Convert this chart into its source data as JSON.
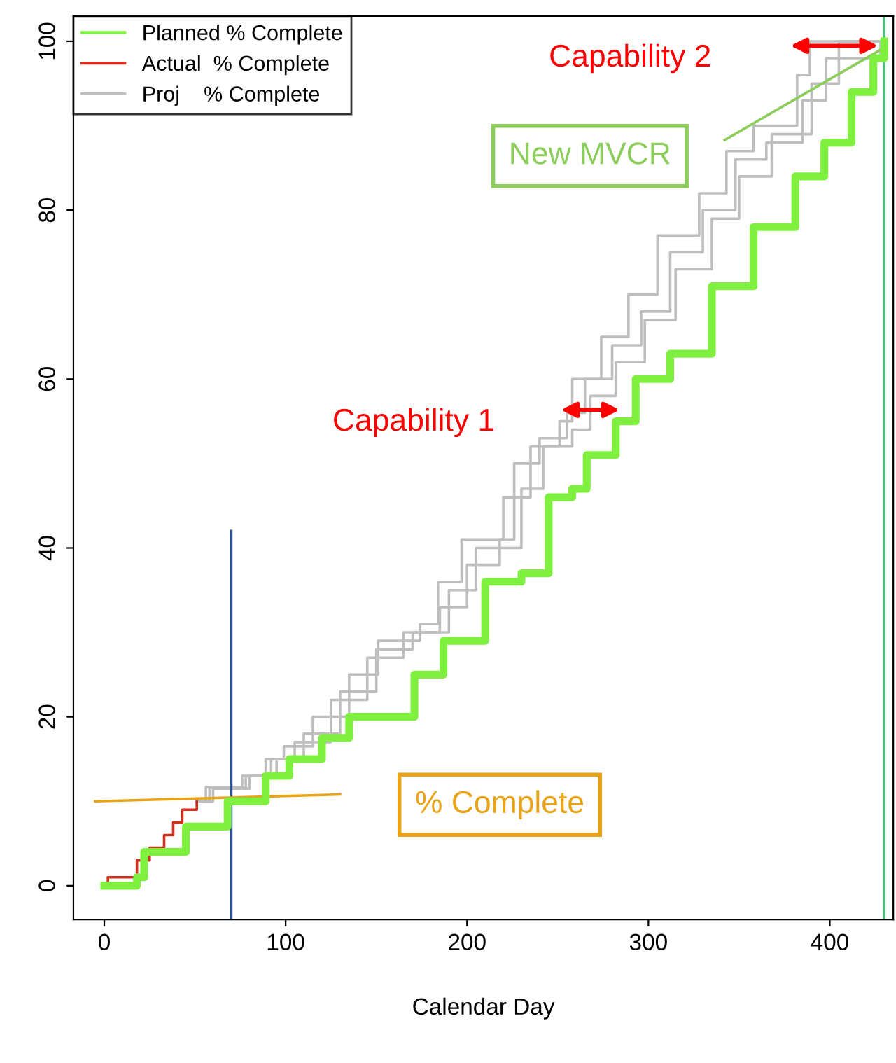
{
  "chart_data": {
    "type": "line",
    "xlabel": "Calendar Day",
    "xlim": [
      -17,
      435
    ],
    "ylim": [
      -4,
      103
    ],
    "xticks": [
      0,
      100,
      200,
      300,
      400
    ],
    "yticks": [
      0,
      20,
      40,
      60,
      80,
      100
    ],
    "grid": false,
    "legend": "top left",
    "series": [
      {
        "type": "step",
        "name": "Planned % Complete",
        "color": "#80f040",
        "x": [
          0,
          5,
          18,
          22,
          45,
          68,
          89,
          102,
          120,
          135,
          171,
          187,
          210,
          230,
          245,
          245,
          258,
          266,
          282,
          293,
          312,
          335,
          358,
          381,
          397,
          412,
          424,
          430
        ],
        "values": [
          0,
          0,
          1,
          4,
          7,
          10,
          13,
          15,
          17.5,
          20,
          25,
          29,
          36,
          37,
          38,
          46,
          47,
          51,
          55,
          60,
          63,
          71,
          78,
          84,
          88,
          94,
          98,
          100
        ]
      },
      {
        "type": "step",
        "name": "Actual  % Complete",
        "color": "#d03020",
        "x": [
          0,
          2,
          16,
          18,
          25,
          33,
          38,
          43,
          51
        ],
        "values": [
          0,
          1,
          1,
          3,
          4.5,
          6,
          7.5,
          9,
          10
        ]
      },
      {
        "type": "step",
        "name": "Proj    % Complete",
        "color": "#bebebe",
        "x": [
          51,
          56,
          76,
          89,
          99,
          115,
          135,
          151,
          174,
          184,
          197,
          216,
          220,
          235,
          251,
          258,
          274,
          289,
          305,
          328,
          343,
          358,
          382,
          389,
          428
        ],
        "values": [
          10,
          11.7,
          13,
          15,
          16.5,
          20,
          25,
          29,
          31,
          36,
          41,
          41,
          46,
          52,
          55,
          60,
          65,
          70,
          77,
          82,
          87,
          90,
          96,
          100,
          100
        ]
      },
      {
        "type": "step",
        "color": "#bebebe",
        "x": [
          51,
          60,
          80,
          95,
          110,
          130,
          150,
          170,
          190,
          205,
          222,
          230,
          242,
          258,
          268,
          282,
          298,
          315,
          335,
          350,
          368,
          390,
          405,
          428
        ],
        "values": [
          10,
          11.5,
          13,
          15,
          18,
          23,
          28,
          30,
          35,
          40,
          40,
          47,
          52,
          54,
          58,
          62,
          67,
          73,
          79,
          84,
          89,
          95,
          100,
          100
        ]
      },
      {
        "type": "step",
        "color": "#bebebe",
        "x": [
          51,
          58,
          78,
          92,
          105,
          125,
          145,
          165,
          185,
          200,
          218,
          226,
          240,
          255,
          265,
          280,
          296,
          312,
          330,
          348,
          365,
          385,
          398,
          428
        ],
        "values": [
          10,
          11.6,
          13,
          15,
          17,
          22,
          27,
          30,
          33,
          38,
          41,
          50,
          53,
          56,
          60,
          64,
          68,
          75,
          80,
          86,
          88,
          93,
          98,
          100
        ]
      },
      {
        "color": "#2b4f8f",
        "x": [
          70,
          70
        ],
        "values": [
          -4,
          42
        ]
      },
      {
        "color": "#e8a317",
        "x": [
          -5,
          130
        ],
        "values": [
          10,
          10.8
        ]
      },
      {
        "color": "#8ccc5a",
        "x": [
          342,
          428
        ],
        "values": [
          88.3,
          99
        ]
      }
    ],
    "ref_lines": [
      {
        "axis": "x",
        "value": 430,
        "color": "#4cc07a"
      }
    ],
    "annotations": [
      "Capability 1",
      "Capability 2",
      "New MVCR",
      "% Complete"
    ]
  }
}
